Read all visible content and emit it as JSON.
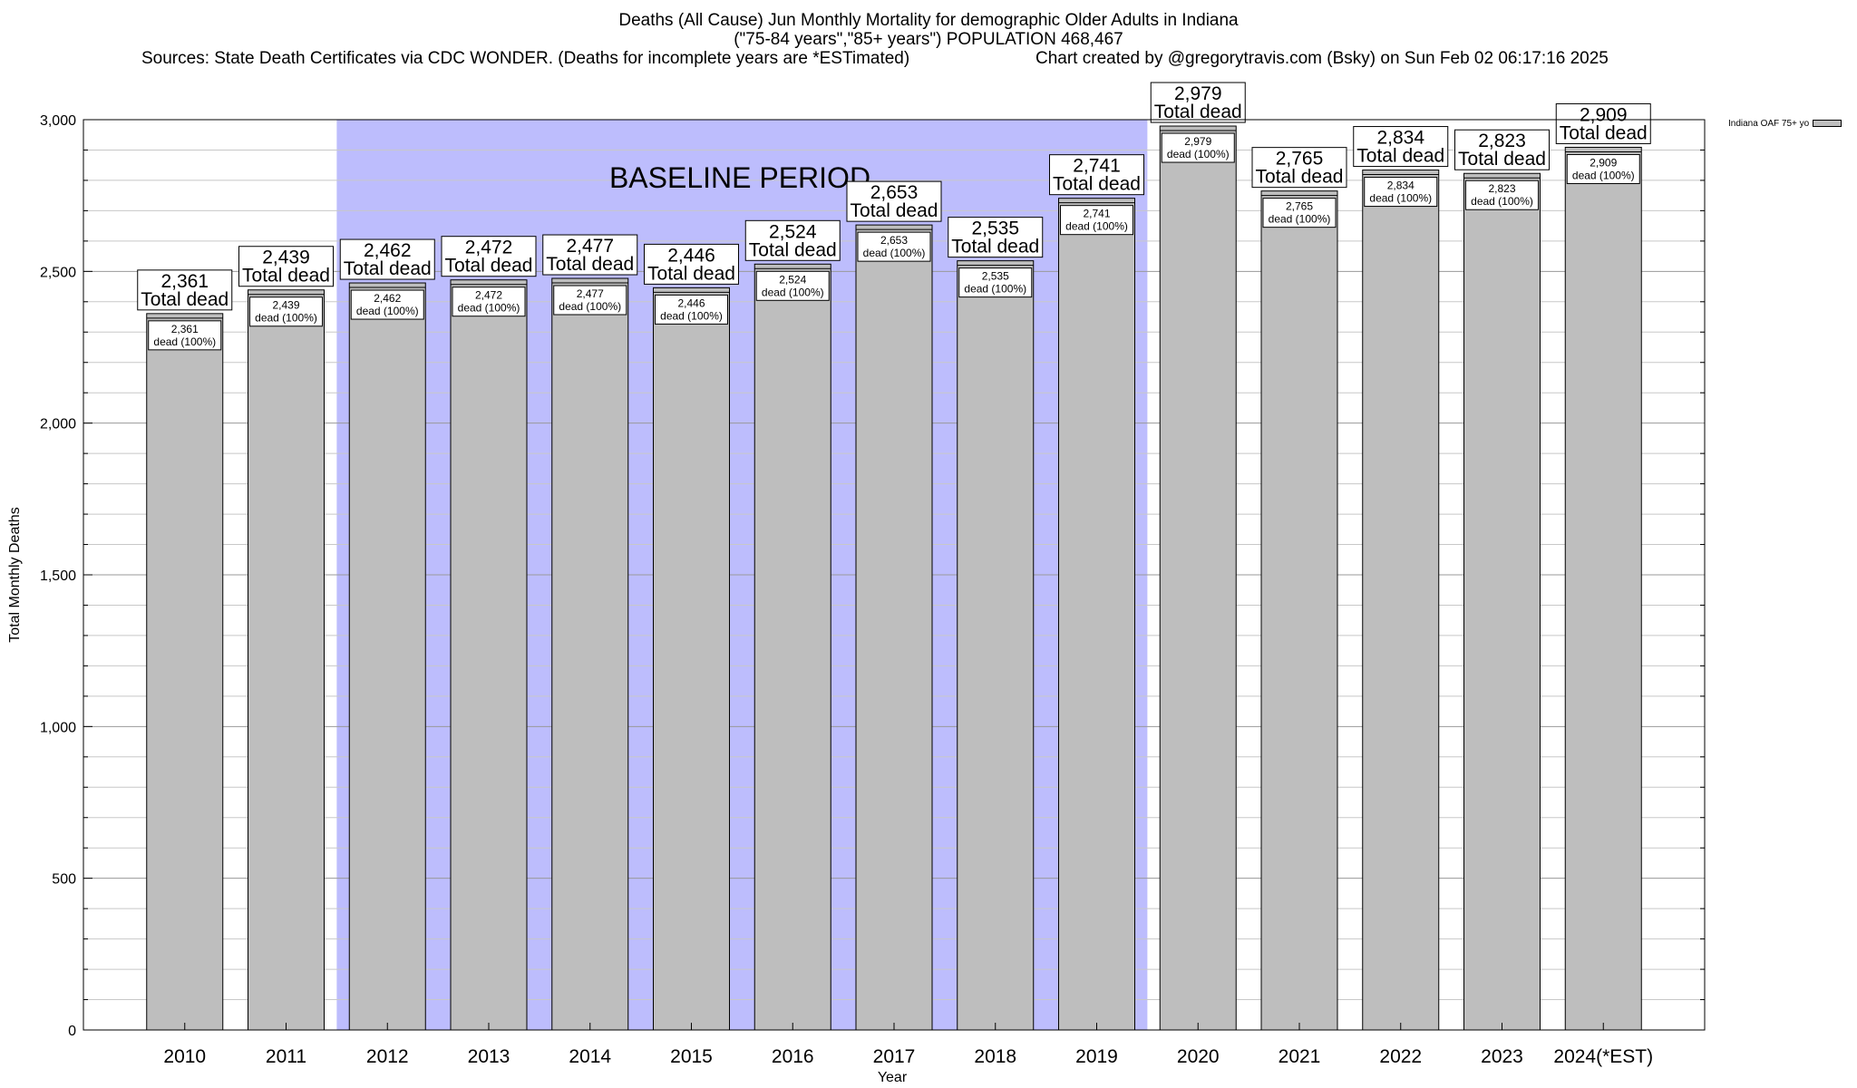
{
  "header": {
    "title_line1": "Deaths (All Cause) Jun Monthly Mortality for demographic Older Adults in Indiana",
    "title_line2": "(\"75-84 years\",\"85+ years\") POPULATION 468,467",
    "sources": "Sources: State Death Certificates via CDC WONDER. (Deaths for incomplete years are *ESTimated)",
    "credit": "Chart created by @gregorytravis.com (Bsky) on Sun Feb 02 06:17:16 2025"
  },
  "legend": {
    "label": "Indiana OAF 75+ yo"
  },
  "colors": {
    "bar": "#bebebe",
    "baseline": "#bdbdfd",
    "grid": "#c8c8c8",
    "bar_border": "#000000"
  },
  "chart_data": {
    "type": "bar",
    "title": "Deaths (All Cause) Jun Monthly Mortality for demographic Older Adults in Indiana",
    "xlabel": "Year",
    "ylabel": "Total Monthly Deaths",
    "ylim": [
      0,
      3000
    ],
    "yticks": [
      0,
      500,
      1000,
      1500,
      2000,
      2500,
      3000
    ],
    "ytick_labels": [
      "0",
      "500",
      "1,000",
      "1,500",
      "2,000",
      "2,500",
      "3,000"
    ],
    "grid": true,
    "legend_position": "top-right",
    "categories": [
      "2010",
      "2011",
      "2012",
      "2013",
      "2014",
      "2015",
      "2016",
      "2017",
      "2018",
      "2019",
      "2020",
      "2021",
      "2022",
      "2023",
      "2024(*EST)"
    ],
    "series": [
      {
        "name": "Indiana OAF 75+ yo",
        "values": [
          2361,
          2439,
          2462,
          2472,
          2477,
          2446,
          2524,
          2653,
          2535,
          2741,
          2979,
          2765,
          2834,
          2823,
          2909
        ]
      }
    ],
    "value_labels": [
      "2,361",
      "2,439",
      "2,462",
      "2,472",
      "2,477",
      "2,446",
      "2,524",
      "2,653",
      "2,535",
      "2,741",
      "2,979",
      "2,765",
      "2,834",
      "2,823",
      "2,909"
    ],
    "total_label_suffix": "Total dead",
    "inner_label_suffix": "dead (100%)",
    "baseline": {
      "label": "BASELINE PERIOD",
      "from": "2012",
      "to": "2019"
    }
  }
}
